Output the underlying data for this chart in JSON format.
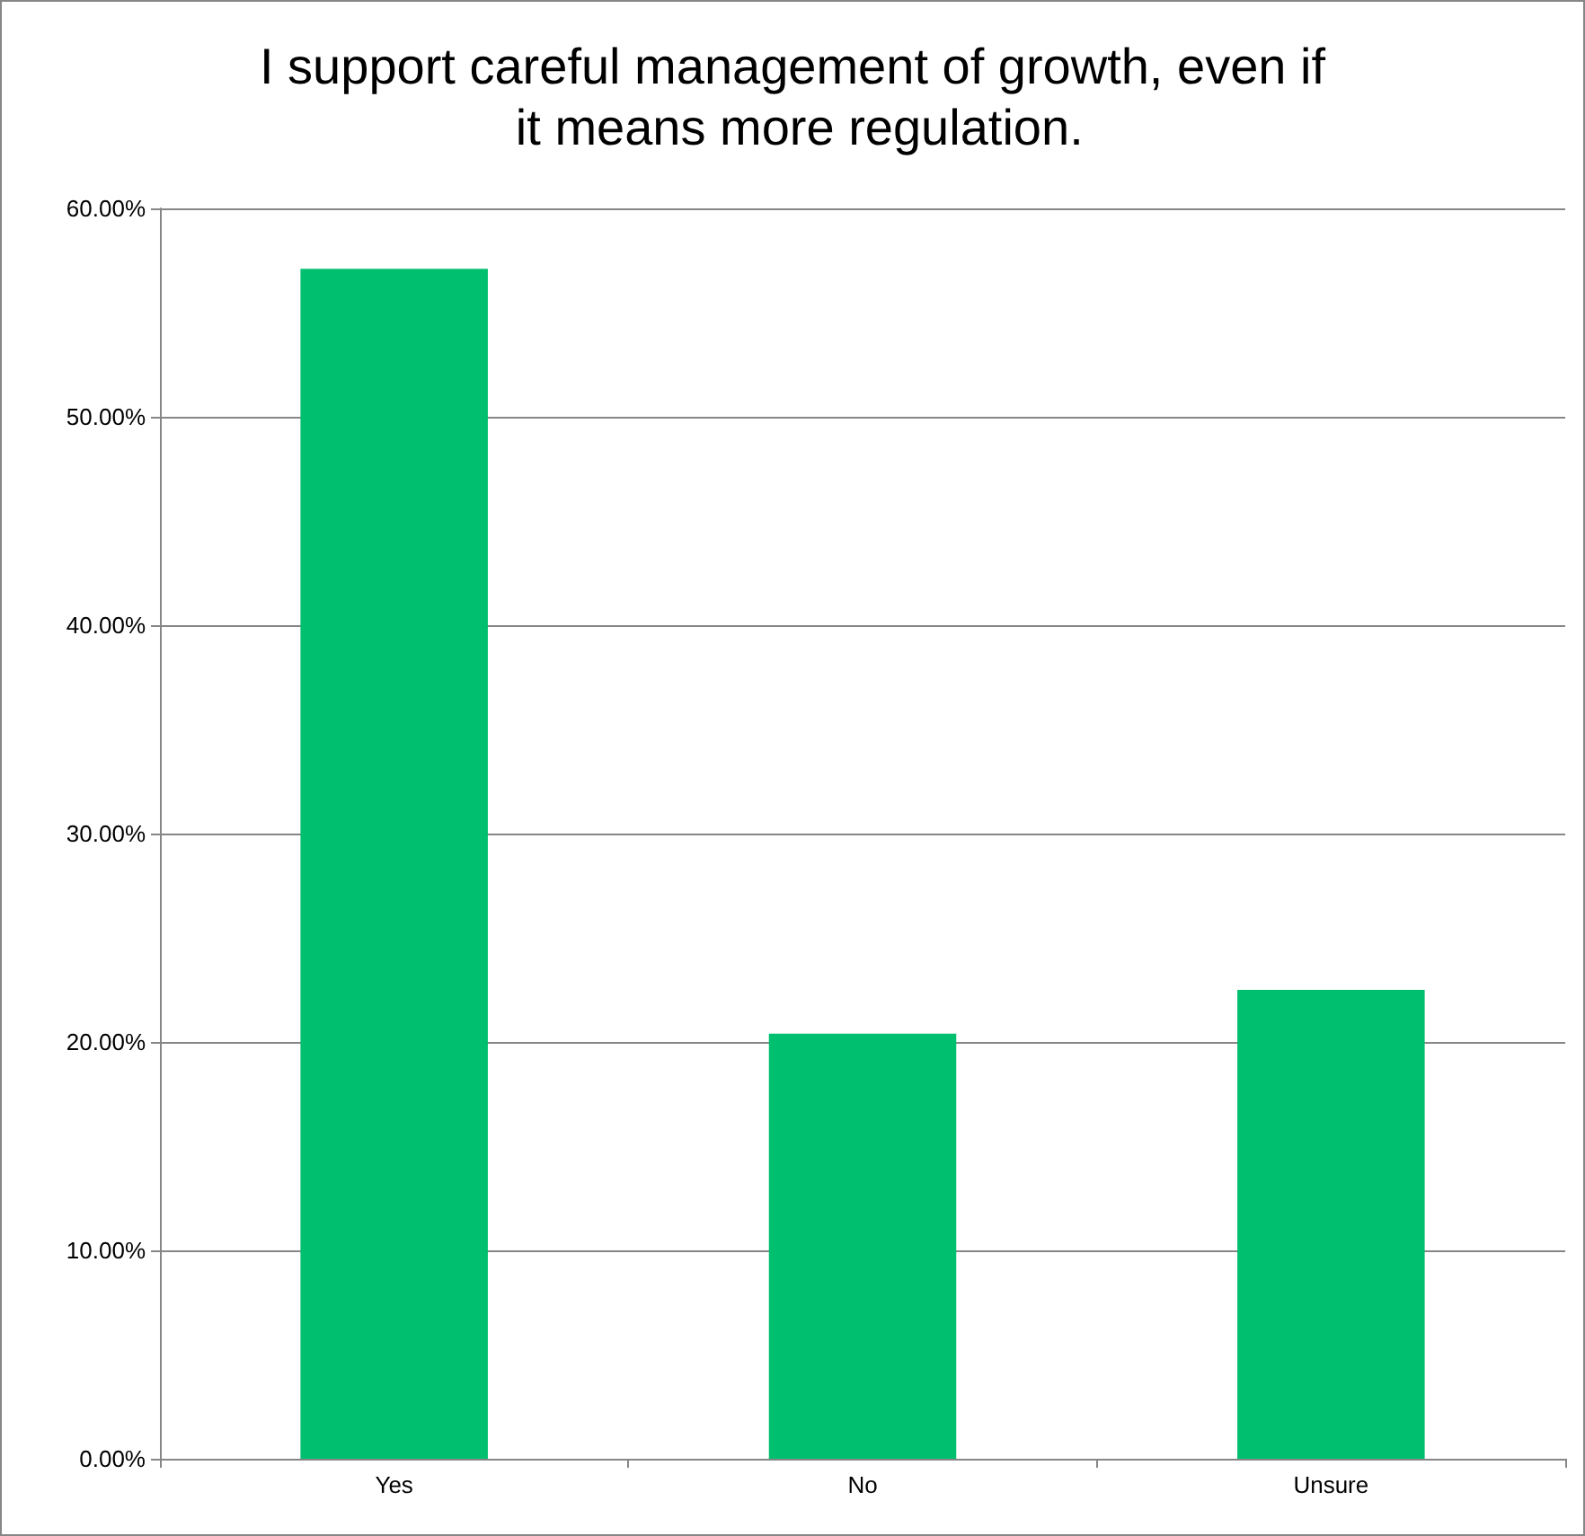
{
  "chart_data": {
    "type": "bar",
    "title": "I support careful management of growth, even if it means more regulation.",
    "categories": [
      "Yes",
      "No",
      "Unsure"
    ],
    "values": [
      57.1,
      20.4,
      22.5
    ],
    "color": "#00bf6f",
    "ylim": [
      0,
      60
    ],
    "yticks": [
      {
        "value": 0,
        "label": "0.00%"
      },
      {
        "value": 10,
        "label": "10.00%"
      },
      {
        "value": 20,
        "label": "20.00%"
      },
      {
        "value": 30,
        "label": "30.00%"
      },
      {
        "value": 40,
        "label": "40.00%"
      },
      {
        "value": 50,
        "label": "50.00%"
      },
      {
        "value": 60,
        "label": "60.00%"
      }
    ],
    "grid": "y"
  }
}
